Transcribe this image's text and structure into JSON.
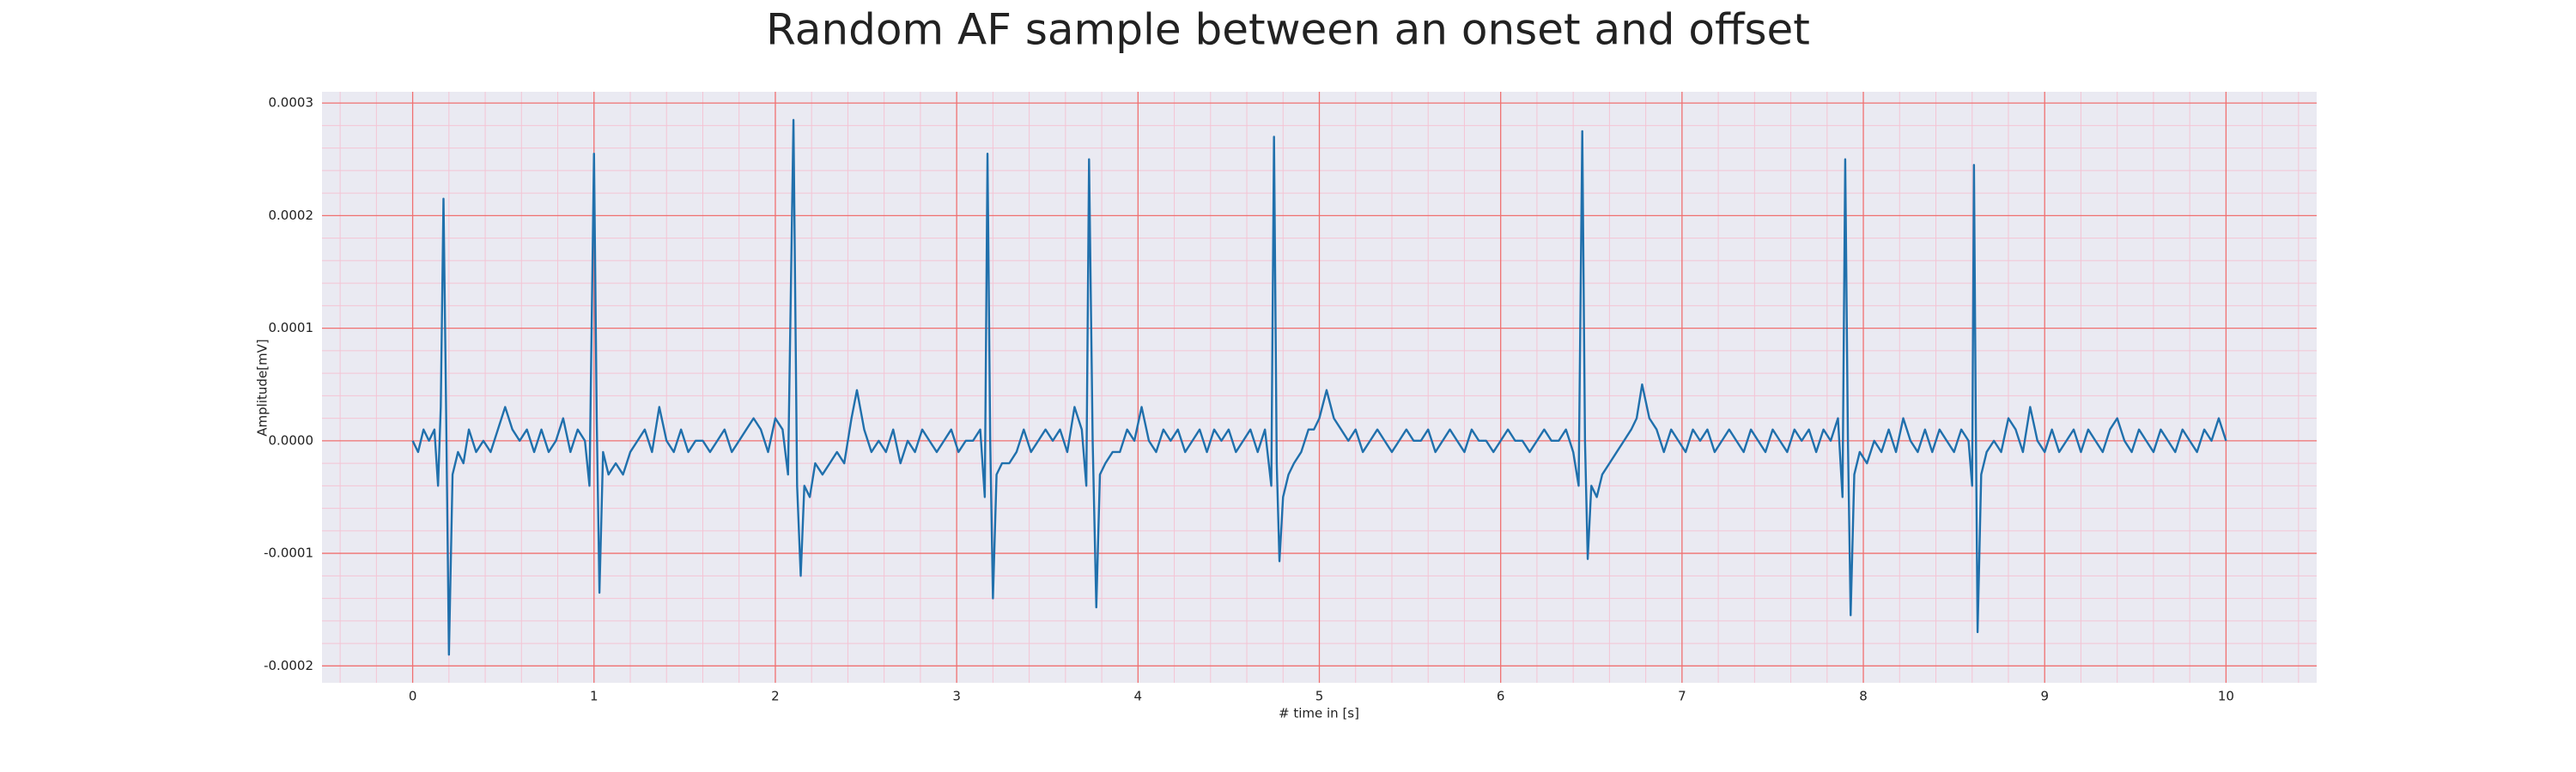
{
  "chart_data": {
    "type": "line",
    "title": "Random AF sample between an onset and offset",
    "xlabel": "# time in [s]",
    "ylabel": "Amplitude[mV]",
    "color": "#2070ac",
    "grid": true,
    "background": "#eaeaf2",
    "grid_color": "#f07070",
    "minor_grid_color": "#f4c4d4",
    "xlim": [
      -0.5,
      10.5
    ],
    "xticks": [
      0,
      1,
      2,
      3,
      4,
      5,
      6,
      7,
      8,
      9,
      10
    ],
    "ylim": [
      -0.000215,
      0.00031
    ],
    "yticks": [
      -0.0002,
      -0.0001,
      {
        "value": 0,
        "label": "0.0000"
      },
      0.0001,
      0.0002,
      0.0003
    ],
    "x": [
      0,
      0.03,
      0.06,
      0.09,
      0.12,
      0.14,
      0.155,
      0.17,
      0.185,
      0.2,
      0.22,
      0.25,
      0.28,
      0.31,
      0.35,
      0.39,
      0.43,
      0.47,
      0.51,
      0.55,
      0.59,
      0.63,
      0.67,
      0.71,
      0.75,
      0.79,
      0.83,
      0.87,
      0.91,
      0.95,
      0.975,
      1.0,
      1.015,
      1.03,
      1.05,
      1.08,
      1.12,
      1.16,
      1.2,
      1.24,
      1.28,
      1.32,
      1.36,
      1.4,
      1.44,
      1.48,
      1.52,
      1.56,
      1.6,
      1.64,
      1.68,
      1.72,
      1.76,
      1.8,
      1.84,
      1.88,
      1.92,
      1.96,
      2.0,
      2.04,
      2.07,
      2.1,
      2.12,
      2.14,
      2.16,
      2.19,
      2.22,
      2.26,
      2.3,
      2.34,
      2.38,
      2.42,
      2.45,
      2.49,
      2.53,
      2.57,
      2.61,
      2.65,
      2.69,
      2.73,
      2.77,
      2.81,
      2.85,
      2.89,
      2.93,
      2.97,
      3.01,
      3.05,
      3.09,
      3.13,
      3.155,
      3.17,
      3.185,
      3.2,
      3.22,
      3.25,
      3.29,
      3.33,
      3.37,
      3.41,
      3.45,
      3.49,
      3.53,
      3.57,
      3.61,
      3.65,
      3.69,
      3.715,
      3.73,
      3.75,
      3.77,
      3.79,
      3.82,
      3.86,
      3.9,
      3.94,
      3.98,
      4.02,
      4.06,
      4.1,
      4.14,
      4.18,
      4.22,
      4.26,
      4.3,
      4.34,
      4.38,
      4.42,
      4.46,
      4.5,
      4.54,
      4.58,
      4.62,
      4.66,
      4.7,
      4.735,
      4.75,
      4.765,
      4.78,
      4.8,
      4.83,
      4.86,
      4.9,
      4.94,
      4.97,
      5.0,
      5.04,
      5.08,
      5.12,
      5.16,
      5.2,
      5.24,
      5.28,
      5.32,
      5.36,
      5.4,
      5.44,
      5.48,
      5.52,
      5.56,
      5.6,
      5.64,
      5.68,
      5.72,
      5.76,
      5.8,
      5.84,
      5.88,
      5.92,
      5.96,
      6.0,
      6.04,
      6.08,
      6.12,
      6.16,
      6.2,
      6.24,
      6.28,
      6.32,
      6.36,
      6.4,
      6.43,
      6.45,
      6.465,
      6.48,
      6.5,
      6.53,
      6.56,
      6.6,
      6.64,
      6.68,
      6.72,
      6.75,
      6.78,
      6.82,
      6.86,
      6.9,
      6.94,
      6.98,
      7.02,
      7.06,
      7.1,
      7.14,
      7.18,
      7.22,
      7.26,
      7.3,
      7.34,
      7.38,
      7.42,
      7.46,
      7.5,
      7.54,
      7.58,
      7.62,
      7.66,
      7.7,
      7.74,
      7.78,
      7.82,
      7.86,
      7.885,
      7.9,
      7.915,
      7.93,
      7.95,
      7.98,
      8.02,
      8.06,
      8.1,
      8.14,
      8.18,
      8.22,
      8.26,
      8.3,
      8.34,
      8.38,
      8.42,
      8.46,
      8.5,
      8.54,
      8.58,
      8.6,
      8.61,
      8.62,
      8.63,
      8.65,
      8.68,
      8.72,
      8.76,
      8.8,
      8.84,
      8.88,
      8.92,
      8.96,
      9.0,
      9.04,
      9.08,
      9.12,
      9.16,
      9.2,
      9.24,
      9.28,
      9.32,
      9.36,
      9.4,
      9.44,
      9.48,
      9.52,
      9.56,
      9.6,
      9.64,
      9.68,
      9.72,
      9.76,
      9.8,
      9.84,
      9.88,
      9.92,
      9.96,
      10.0
    ],
    "values": [
      0,
      -1e-05,
      1e-05,
      0,
      1e-05,
      -4e-05,
      3e-05,
      0.000215,
      2e-05,
      -0.00019,
      -3e-05,
      -1e-05,
      -2e-05,
      1e-05,
      -1e-05,
      0,
      -1e-05,
      1e-05,
      3e-05,
      1e-05,
      0,
      1e-05,
      -1e-05,
      1e-05,
      -1e-05,
      0,
      2e-05,
      -1e-05,
      1e-05,
      0,
      -4e-05,
      0.000255,
      2e-05,
      -0.000135,
      -1e-05,
      -3e-05,
      -2e-05,
      -3e-05,
      -1e-05,
      0,
      1e-05,
      -1e-05,
      3e-05,
      0,
      -1e-05,
      1e-05,
      -1e-05,
      0,
      0,
      -1e-05,
      0,
      1e-05,
      -1e-05,
      0,
      1e-05,
      2e-05,
      1e-05,
      -1e-05,
      2e-05,
      1e-05,
      -3e-05,
      0.000285,
      -4e-05,
      -0.00012,
      -4e-05,
      -5e-05,
      -2e-05,
      -3e-05,
      -2e-05,
      -1e-05,
      -2e-05,
      2e-05,
      4.5e-05,
      1e-05,
      -1e-05,
      0,
      -1e-05,
      1e-05,
      -2e-05,
      0,
      -1e-05,
      1e-05,
      0,
      -1e-05,
      0,
      1e-05,
      -1e-05,
      0,
      0,
      1e-05,
      -5e-05,
      0.000255,
      0,
      -0.00014,
      -3e-05,
      -2e-05,
      -2e-05,
      -1e-05,
      1e-05,
      -1e-05,
      0,
      1e-05,
      0,
      1e-05,
      -1e-05,
      3e-05,
      1e-05,
      -4e-05,
      0.00025,
      0,
      -0.000148,
      -3e-05,
      -2e-05,
      -1e-05,
      -1e-05,
      1e-05,
      0,
      3e-05,
      0,
      -1e-05,
      1e-05,
      0,
      1e-05,
      -1e-05,
      0,
      1e-05,
      -1e-05,
      1e-05,
      0,
      1e-05,
      -1e-05,
      0,
      1e-05,
      -1e-05,
      1e-05,
      -4e-05,
      0.00027,
      -2e-05,
      -0.000107,
      -5e-05,
      -3e-05,
      -2e-05,
      -1e-05,
      1e-05,
      1e-05,
      2e-05,
      4.5e-05,
      2e-05,
      1e-05,
      0,
      1e-05,
      -1e-05,
      0,
      1e-05,
      0,
      -1e-05,
      0,
      1e-05,
      0,
      0,
      1e-05,
      -1e-05,
      0,
      1e-05,
      0,
      -1e-05,
      1e-05,
      0,
      0,
      -1e-05,
      0,
      1e-05,
      0,
      0,
      -1e-05,
      0,
      1e-05,
      0,
      0,
      1e-05,
      -1e-05,
      -4e-05,
      0.000275,
      0,
      -0.000105,
      -4e-05,
      -5e-05,
      -3e-05,
      -2e-05,
      -1e-05,
      0,
      1e-05,
      2e-05,
      5e-05,
      2e-05,
      1e-05,
      -1e-05,
      1e-05,
      0,
      -1e-05,
      1e-05,
      0,
      1e-05,
      -1e-05,
      0,
      1e-05,
      0,
      -1e-05,
      1e-05,
      0,
      -1e-05,
      1e-05,
      0,
      -1e-05,
      1e-05,
      0,
      1e-05,
      -1e-05,
      1e-05,
      0,
      2e-05,
      -5e-05,
      0.00025,
      0,
      -0.000155,
      -3e-05,
      -1e-05,
      -2e-05,
      0,
      -1e-05,
      1e-05,
      -1e-05,
      2e-05,
      0,
      -1e-05,
      1e-05,
      -1e-05,
      1e-05,
      0,
      -1e-05,
      1e-05,
      0,
      -4e-05,
      0.000245,
      2e-05,
      -0.00017,
      -3e-05,
      -1e-05,
      0,
      -1e-05,
      2e-05,
      1e-05,
      -1e-05,
      3e-05,
      0,
      -1e-05,
      1e-05,
      -1e-05,
      0,
      1e-05,
      -1e-05,
      1e-05,
      0,
      -1e-05,
      1e-05,
      2e-05,
      0,
      -1e-05,
      1e-05,
      0,
      -1e-05,
      1e-05,
      0,
      -1e-05,
      1e-05,
      0,
      -1e-05,
      1e-05,
      0,
      2e-05,
      0
    ]
  }
}
